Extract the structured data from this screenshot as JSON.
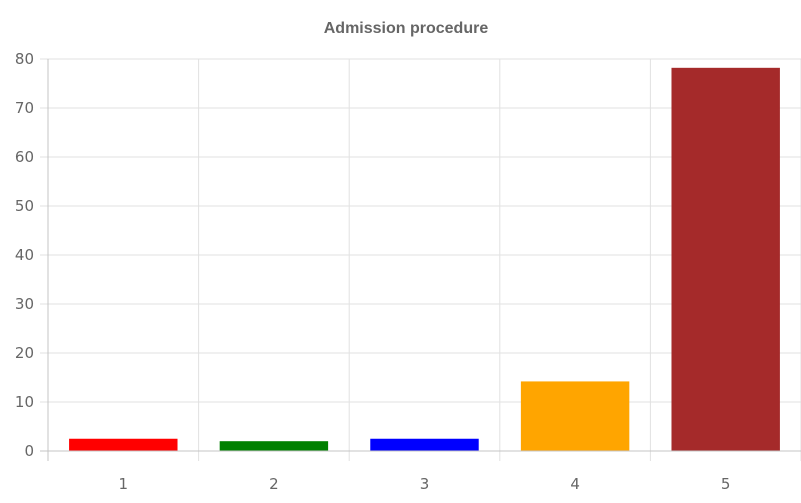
{
  "chart_data": {
    "type": "bar",
    "title": "Admission procedure",
    "xlabel": "",
    "ylabel": "",
    "categories": [
      "1",
      "2",
      "3",
      "4",
      "5"
    ],
    "values": [
      2.5,
      2,
      2.5,
      14.2,
      78.2
    ],
    "colors": [
      "#ff0000",
      "#008000",
      "#0000ff",
      "#ffa500",
      "#a52a2a"
    ],
    "ylim": [
      0,
      80
    ],
    "yticks": [
      0,
      10,
      20,
      30,
      40,
      50,
      60,
      70,
      80
    ],
    "grid": true,
    "legend": "none"
  }
}
